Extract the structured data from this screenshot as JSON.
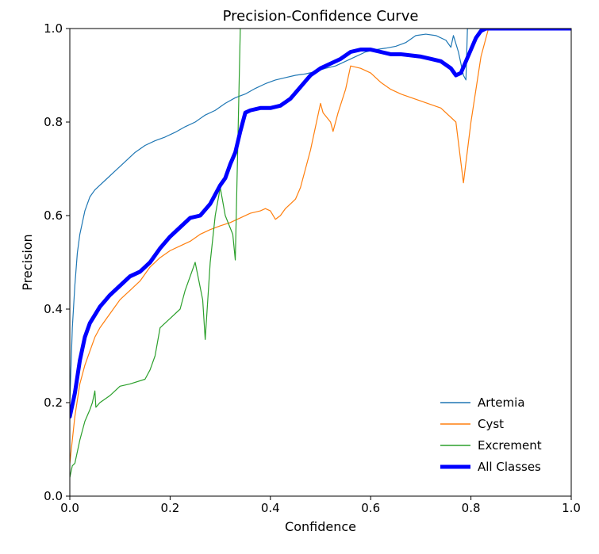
{
  "chart_data": {
    "type": "line",
    "title": "Precision-Confidence Curve",
    "xlabel": "Confidence",
    "ylabel": "Precision",
    "xlim": [
      0.0,
      1.0
    ],
    "ylim": [
      0.0,
      1.0
    ],
    "xticks": [
      "0.0",
      "0.2",
      "0.4",
      "0.6",
      "0.8",
      "1.0"
    ],
    "yticks": [
      "0.0",
      "0.2",
      "0.4",
      "0.6",
      "0.8",
      "1.0"
    ],
    "grid": false,
    "legend_position": "lower-right",
    "series": [
      {
        "name": "Artemia",
        "color": "#1f77b4",
        "points": [
          [
            0.0,
            0.2
          ],
          [
            0.005,
            0.36
          ],
          [
            0.01,
            0.45
          ],
          [
            0.015,
            0.52
          ],
          [
            0.02,
            0.56
          ],
          [
            0.03,
            0.61
          ],
          [
            0.04,
            0.64
          ],
          [
            0.05,
            0.655
          ],
          [
            0.07,
            0.675
          ],
          [
            0.09,
            0.695
          ],
          [
            0.11,
            0.715
          ],
          [
            0.13,
            0.735
          ],
          [
            0.15,
            0.75
          ],
          [
            0.17,
            0.76
          ],
          [
            0.19,
            0.768
          ],
          [
            0.21,
            0.778
          ],
          [
            0.23,
            0.79
          ],
          [
            0.25,
            0.8
          ],
          [
            0.27,
            0.815
          ],
          [
            0.29,
            0.825
          ],
          [
            0.31,
            0.84
          ],
          [
            0.33,
            0.852
          ],
          [
            0.35,
            0.86
          ],
          [
            0.37,
            0.872
          ],
          [
            0.39,
            0.882
          ],
          [
            0.41,
            0.89
          ],
          [
            0.43,
            0.895
          ],
          [
            0.45,
            0.9
          ],
          [
            0.47,
            0.903
          ],
          [
            0.49,
            0.908
          ],
          [
            0.51,
            0.915
          ],
          [
            0.53,
            0.92
          ],
          [
            0.55,
            0.93
          ],
          [
            0.57,
            0.94
          ],
          [
            0.59,
            0.95
          ],
          [
            0.61,
            0.955
          ],
          [
            0.63,
            0.958
          ],
          [
            0.65,
            0.962
          ],
          [
            0.67,
            0.97
          ],
          [
            0.69,
            0.985
          ],
          [
            0.71,
            0.988
          ],
          [
            0.73,
            0.985
          ],
          [
            0.75,
            0.975
          ],
          [
            0.76,
            0.96
          ],
          [
            0.765,
            0.985
          ],
          [
            0.775,
            0.95
          ],
          [
            0.785,
            0.9
          ],
          [
            0.79,
            0.89
          ],
          [
            0.793,
            1.0
          ],
          [
            1.0,
            1.0
          ]
        ]
      },
      {
        "name": "Cyst",
        "color": "#ff7f0e",
        "points": [
          [
            0.0,
            0.07
          ],
          [
            0.01,
            0.17
          ],
          [
            0.02,
            0.24
          ],
          [
            0.03,
            0.28
          ],
          [
            0.04,
            0.31
          ],
          [
            0.05,
            0.34
          ],
          [
            0.06,
            0.36
          ],
          [
            0.08,
            0.39
          ],
          [
            0.1,
            0.42
          ],
          [
            0.12,
            0.44
          ],
          [
            0.14,
            0.46
          ],
          [
            0.16,
            0.49
          ],
          [
            0.18,
            0.51
          ],
          [
            0.2,
            0.525
          ],
          [
            0.22,
            0.535
          ],
          [
            0.24,
            0.545
          ],
          [
            0.26,
            0.56
          ],
          [
            0.28,
            0.57
          ],
          [
            0.3,
            0.578
          ],
          [
            0.32,
            0.585
          ],
          [
            0.34,
            0.595
          ],
          [
            0.36,
            0.605
          ],
          [
            0.38,
            0.61
          ],
          [
            0.39,
            0.615
          ],
          [
            0.4,
            0.61
          ],
          [
            0.41,
            0.592
          ],
          [
            0.42,
            0.6
          ],
          [
            0.43,
            0.615
          ],
          [
            0.45,
            0.635
          ],
          [
            0.46,
            0.66
          ],
          [
            0.47,
            0.7
          ],
          [
            0.48,
            0.74
          ],
          [
            0.49,
            0.79
          ],
          [
            0.5,
            0.84
          ],
          [
            0.505,
            0.82
          ],
          [
            0.52,
            0.8
          ],
          [
            0.525,
            0.78
          ],
          [
            0.535,
            0.82
          ],
          [
            0.55,
            0.87
          ],
          [
            0.56,
            0.92
          ],
          [
            0.58,
            0.915
          ],
          [
            0.6,
            0.905
          ],
          [
            0.62,
            0.885
          ],
          [
            0.64,
            0.87
          ],
          [
            0.66,
            0.86
          ],
          [
            0.7,
            0.845
          ],
          [
            0.74,
            0.83
          ],
          [
            0.77,
            0.8
          ],
          [
            0.785,
            0.67
          ],
          [
            0.8,
            0.8
          ],
          [
            0.82,
            0.94
          ],
          [
            0.835,
            1.0
          ],
          [
            1.0,
            1.0
          ]
        ]
      },
      {
        "name": "Excrement",
        "color": "#2ca02c",
        "points": [
          [
            0.0,
            0.04
          ],
          [
            0.005,
            0.065
          ],
          [
            0.01,
            0.07
          ],
          [
            0.02,
            0.12
          ],
          [
            0.03,
            0.16
          ],
          [
            0.04,
            0.185
          ],
          [
            0.045,
            0.2
          ],
          [
            0.05,
            0.225
          ],
          [
            0.052,
            0.19
          ],
          [
            0.06,
            0.2
          ],
          [
            0.08,
            0.215
          ],
          [
            0.1,
            0.235
          ],
          [
            0.12,
            0.24
          ],
          [
            0.15,
            0.25
          ],
          [
            0.16,
            0.27
          ],
          [
            0.17,
            0.3
          ],
          [
            0.18,
            0.36
          ],
          [
            0.2,
            0.38
          ],
          [
            0.22,
            0.4
          ],
          [
            0.23,
            0.44
          ],
          [
            0.25,
            0.5
          ],
          [
            0.265,
            0.42
          ],
          [
            0.27,
            0.335
          ],
          [
            0.28,
            0.5
          ],
          [
            0.29,
            0.6
          ],
          [
            0.3,
            0.66
          ],
          [
            0.31,
            0.6
          ],
          [
            0.325,
            0.56
          ],
          [
            0.33,
            0.505
          ],
          [
            0.335,
            0.75
          ],
          [
            0.34,
            1.0
          ]
        ]
      },
      {
        "name": "All Classes",
        "color": "#0000ff",
        "points": [
          [
            0.0,
            0.17
          ],
          [
            0.01,
            0.22
          ],
          [
            0.02,
            0.29
          ],
          [
            0.03,
            0.34
          ],
          [
            0.04,
            0.37
          ],
          [
            0.06,
            0.405
          ],
          [
            0.08,
            0.43
          ],
          [
            0.1,
            0.45
          ],
          [
            0.12,
            0.47
          ],
          [
            0.14,
            0.48
          ],
          [
            0.16,
            0.5
          ],
          [
            0.18,
            0.53
          ],
          [
            0.2,
            0.555
          ],
          [
            0.22,
            0.575
          ],
          [
            0.24,
            0.595
          ],
          [
            0.26,
            0.6
          ],
          [
            0.28,
            0.625
          ],
          [
            0.3,
            0.665
          ],
          [
            0.31,
            0.68
          ],
          [
            0.32,
            0.71
          ],
          [
            0.33,
            0.735
          ],
          [
            0.34,
            0.78
          ],
          [
            0.35,
            0.82
          ],
          [
            0.36,
            0.825
          ],
          [
            0.38,
            0.83
          ],
          [
            0.4,
            0.83
          ],
          [
            0.42,
            0.835
          ],
          [
            0.44,
            0.85
          ],
          [
            0.46,
            0.875
          ],
          [
            0.48,
            0.9
          ],
          [
            0.5,
            0.915
          ],
          [
            0.52,
            0.925
          ],
          [
            0.54,
            0.935
          ],
          [
            0.56,
            0.95
          ],
          [
            0.58,
            0.955
          ],
          [
            0.6,
            0.955
          ],
          [
            0.62,
            0.95
          ],
          [
            0.64,
            0.945
          ],
          [
            0.66,
            0.945
          ],
          [
            0.7,
            0.94
          ],
          [
            0.72,
            0.935
          ],
          [
            0.74,
            0.93
          ],
          [
            0.76,
            0.915
          ],
          [
            0.77,
            0.9
          ],
          [
            0.78,
            0.905
          ],
          [
            0.79,
            0.93
          ],
          [
            0.8,
            0.955
          ],
          [
            0.81,
            0.98
          ],
          [
            0.82,
            0.995
          ],
          [
            0.83,
            1.0
          ],
          [
            1.0,
            1.0
          ]
        ]
      }
    ]
  }
}
